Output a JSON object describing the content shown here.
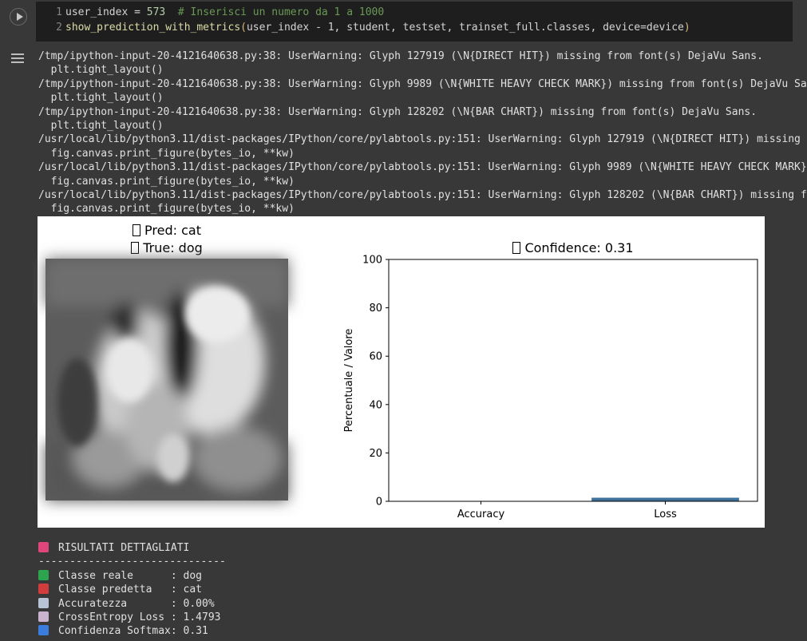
{
  "code_cell": {
    "lines": [
      {
        "num": "1",
        "code": "user_index = ",
        "value": "573",
        "comment": "  # Inserisci un numero da 1 a 1000"
      },
      {
        "num": "2",
        "fn": "show_prediction_with_metrics",
        "open": "(",
        "args": "user_index - 1, student, testset, trainset_full.classes, device=device",
        "close": ")"
      }
    ]
  },
  "warnings": [
    "/tmp/ipython-input-20-4121640638.py:38: UserWarning: Glyph 127919 (\\N{DIRECT HIT}) missing from font(s) DejaVu Sans.",
    "  plt.tight_layout()",
    "/tmp/ipython-input-20-4121640638.py:38: UserWarning: Glyph 9989 (\\N{WHITE HEAVY CHECK MARK}) missing from font(s) DejaVu Sa",
    "  plt.tight_layout()",
    "/tmp/ipython-input-20-4121640638.py:38: UserWarning: Glyph 128202 (\\N{BAR CHART}) missing from font(s) DejaVu Sans.",
    "  plt.tight_layout()",
    "/usr/local/lib/python3.11/dist-packages/IPython/core/pylabtools.py:151: UserWarning: Glyph 127919 (\\N{DIRECT HIT}) missing",
    "  fig.canvas.print_figure(bytes_io, **kw)",
    "/usr/local/lib/python3.11/dist-packages/IPython/core/pylabtools.py:151: UserWarning: Glyph 9989 (\\N{WHITE HEAVY CHECK MARK}",
    "  fig.canvas.print_figure(bytes_io, **kw)",
    "/usr/local/lib/python3.11/dist-packages/IPython/core/pylabtools.py:151: UserWarning: Glyph 128202 (\\N{BAR CHART}) missing f",
    "  fig.canvas.print_figure(bytes_io, **kw)"
  ],
  "figure": {
    "pred_title": "Pred: cat",
    "true_title": "True: dog",
    "chart_title": "Confidence: 0.31"
  },
  "chart_data": {
    "type": "bar",
    "categories": [
      "Accuracy",
      "Loss"
    ],
    "values": [
      0.0,
      1.4793
    ],
    "ylabel": "Percentuale / Valore",
    "xlabel": "",
    "ylim": [
      0,
      100
    ],
    "yticks": [
      0,
      20,
      40,
      60,
      80,
      100
    ],
    "bar_color": "#3f729b"
  },
  "results": {
    "header": "RISULTATI DETTAGLIATI",
    "separator": "------------------------------",
    "rows": [
      {
        "icon": "check-mark-icon",
        "color": "#2ea44f",
        "text": "Classe reale      : dog"
      },
      {
        "icon": "direct-hit-icon",
        "color": "#d33c3c",
        "text": "Classe predetta   : cat"
      },
      {
        "icon": "chart-increasing-icon",
        "color": "#b8c4d6",
        "text": "Accuratezza       : 0.00%"
      },
      {
        "icon": "chart-decreasing-icon",
        "color": "#c9b3cf",
        "text": "CrossEntropy Loss : 1.4793"
      },
      {
        "icon": "input-numbers-icon",
        "color": "#3b7ddd",
        "text": "Confidenza Softmax: 0.31"
      }
    ],
    "header_icon_color": "#e0457b"
  }
}
